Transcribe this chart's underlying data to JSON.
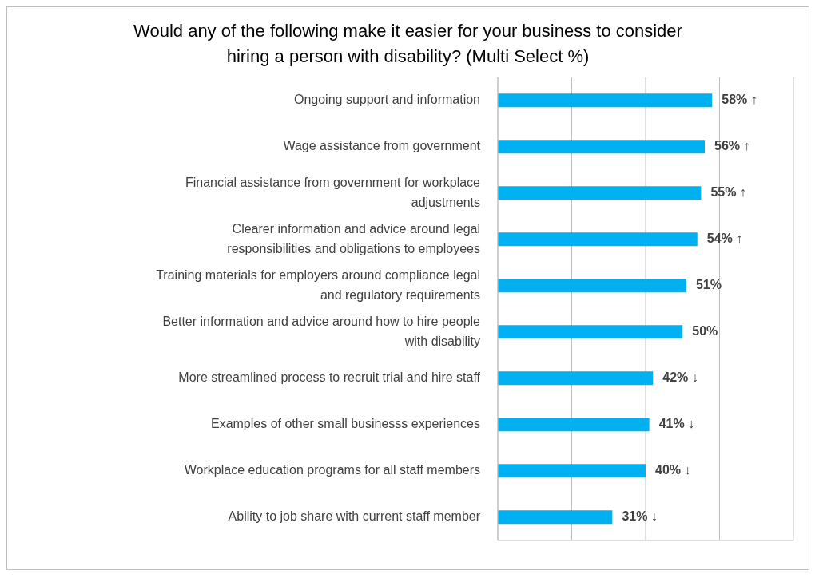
{
  "chart_data": {
    "type": "bar",
    "orientation": "horizontal",
    "title": "Would any of the following make it easier for your business to consider hiring a person with disability? (Multi Select %)",
    "categories": [
      "Ongoing support and information",
      "Wage assistance from government",
      "Financial assistance from government for workplace adjustments",
      "Clearer information and advice around legal responsibilities and obligations to employees",
      "Training materials for employers around compliance legal and regulatory requirements",
      "Better information and advice around how to hire people with disability",
      "More streamlined process to recruit trial and hire staff",
      "Examples of other small businesss experiences",
      "Workplace education programs for all staff members",
      "Ability to job share with current staff member"
    ],
    "values": [
      58,
      56,
      55,
      54,
      51,
      50,
      42,
      41,
      40,
      31
    ],
    "value_labels": [
      "58% ↑",
      "56% ↑",
      "55% ↑",
      "54% ↑",
      "51%",
      "50%",
      "42% ↓",
      "41% ↓",
      "40% ↓",
      "31% ↓"
    ],
    "color": "#00b0f0",
    "xlim": [
      0,
      80
    ],
    "grid": "x",
    "tick_labels": "y"
  }
}
